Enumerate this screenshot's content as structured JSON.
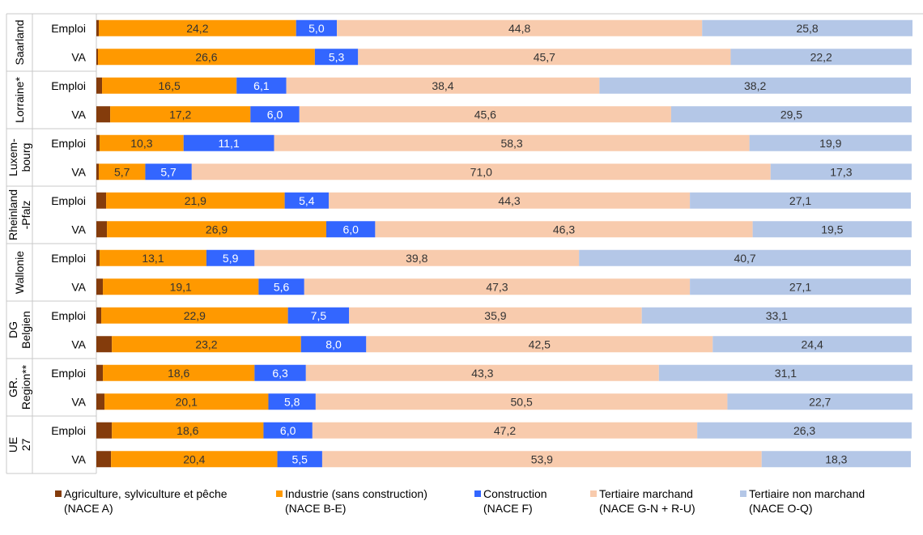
{
  "chart_data": {
    "type": "bar",
    "orientation": "horizontal",
    "stacked": true,
    "percent_stacked": true,
    "xlim": [
      0,
      100
    ],
    "grid": false,
    "legend_position": "bottom",
    "title": "",
    "xlabel": "",
    "ylabel": "",
    "segment_colors": [
      "#843c0c",
      "#ff9900",
      "#3366ff",
      "#f8cbad",
      "#b4c7e7"
    ],
    "legend": [
      {
        "line1": "Agriculture, sylviculture et pêche",
        "line2": "(NACE A)"
      },
      {
        "line1": "Industrie (sans construction)",
        "line2": "(NACE B-E)"
      },
      {
        "line1": "Construction",
        "line2": "(NACE F)"
      },
      {
        "line1": "Tertiaire marchand",
        "line2": "(NACE G-N + R-U)"
      },
      {
        "line1": "Tertiaire non marchand",
        "line2": "(NACE O-Q)"
      }
    ],
    "groups": [
      {
        "region": "Saarland",
        "rows": [
          {
            "label": "Emploi",
            "labels": [
              "0,3",
              "24,2",
              "5,0",
              "44,8",
              "25,8"
            ],
            "values": [
              0.3,
              24.2,
              5.0,
              44.8,
              25.8
            ]
          },
          {
            "label": "VA",
            "labels": [
              "0,2",
              "26,6",
              "5,3",
              "45,7",
              "22,2"
            ],
            "values": [
              0.2,
              26.6,
              5.3,
              45.7,
              22.2
            ]
          }
        ]
      },
      {
        "region": "Lorraine*",
        "rows": [
          {
            "label": "Emploi",
            "labels": [
              "0,7",
              "16,5",
              "6,1",
              "38,4",
              "38,2"
            ],
            "values": [
              0.7,
              16.5,
              6.1,
              38.4,
              38.2
            ]
          },
          {
            "label": "VA",
            "labels": [
              "1,7",
              "17,2",
              "6,0",
              "45,6",
              "29,5"
            ],
            "values": [
              1.7,
              17.2,
              6.0,
              45.6,
              29.5
            ]
          }
        ]
      },
      {
        "region": "Luxem- bourg",
        "rows": [
          {
            "label": "Emploi",
            "labels": [
              "0,4",
              "10,3",
              "11,1",
              "58,3",
              "19,9"
            ],
            "values": [
              0.4,
              10.3,
              11.1,
              58.3,
              19.9
            ]
          },
          {
            "label": "VA",
            "labels": [
              "0,3",
              "5,7",
              "5,7",
              "71,0",
              "17,3"
            ],
            "values": [
              0.3,
              5.7,
              5.7,
              71.0,
              17.3
            ]
          }
        ]
      },
      {
        "region": "Rheinland -Pfalz",
        "rows": [
          {
            "label": "Emploi",
            "labels": [
              "1,2",
              "21,9",
              "5,4",
              "44,3",
              "27,1"
            ],
            "values": [
              1.2,
              21.9,
              5.4,
              44.3,
              27.1
            ]
          },
          {
            "label": "VA",
            "labels": [
              "1,3",
              "26,9",
              "6,0",
              "46,3",
              "19,5"
            ],
            "values": [
              1.3,
              26.9,
              6.0,
              46.3,
              19.5
            ]
          }
        ]
      },
      {
        "region": "Wallonie",
        "rows": [
          {
            "label": "Emploi",
            "labels": [
              "0,4",
              "13,1",
              "5,9",
              "39,8",
              "40,7"
            ],
            "values": [
              0.4,
              13.1,
              5.9,
              39.8,
              40.7
            ]
          },
          {
            "label": "VA",
            "labels": [
              "0,8",
              "19,1",
              "5,6",
              "47,3",
              "27,1"
            ],
            "values": [
              0.8,
              19.1,
              5.6,
              47.3,
              27.1
            ]
          }
        ]
      },
      {
        "region": "DG Belgien",
        "rows": [
          {
            "label": "Emploi",
            "labels": [
              "0,6",
              "22,9",
              "7,5",
              "35,9",
              "33,1"
            ],
            "values": [
              0.6,
              22.9,
              7.5,
              35.9,
              33.1
            ]
          },
          {
            "label": "VA",
            "labels": [
              "1,9",
              "23,2",
              "8,0",
              "42,5",
              "24,4"
            ],
            "values": [
              1.9,
              23.2,
              8.0,
              42.5,
              24.4
            ]
          }
        ]
      },
      {
        "region": "GR. Region**",
        "rows": [
          {
            "label": "Emploi",
            "labels": [
              "0,8",
              "18,6",
              "6,3",
              "43,3",
              "31,1"
            ],
            "values": [
              0.8,
              18.6,
              6.3,
              43.3,
              31.1
            ]
          },
          {
            "label": "VA",
            "labels": [
              "1,0",
              "20,1",
              "5,8",
              "50,5",
              "22,7"
            ],
            "values": [
              1.0,
              20.1,
              5.8,
              50.5,
              22.7
            ]
          }
        ]
      },
      {
        "region": "UE 27",
        "rows": [
          {
            "label": "Emploi",
            "labels": [
              "1,9",
              "18,6",
              "6,0",
              "47,2",
              "26,3"
            ],
            "values": [
              1.9,
              18.6,
              6.0,
              47.2,
              26.3
            ]
          },
          {
            "label": "VA",
            "labels": [
              "1,8",
              "20,4",
              "5,5",
              "53,9",
              "18,3"
            ],
            "values": [
              1.8,
              20.4,
              5.5,
              53.9,
              18.3
            ]
          }
        ]
      }
    ]
  }
}
